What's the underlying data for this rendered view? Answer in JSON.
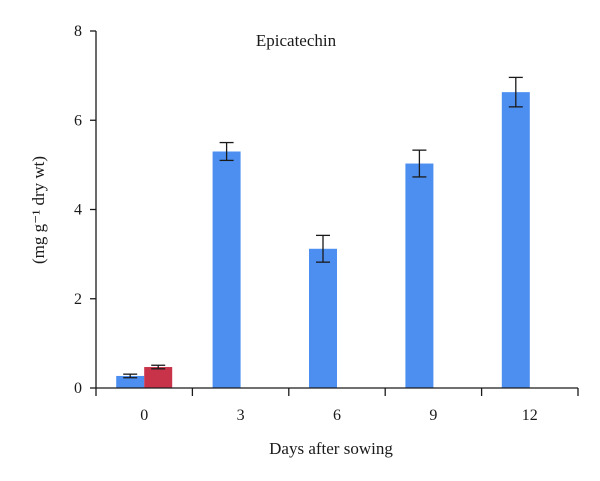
{
  "chart_data": {
    "type": "bar",
    "title": "Epicatechin",
    "xlabel": "Days after sowing",
    "ylabel": "(mg g⁻¹ dry wt)",
    "categories": [
      "0",
      "3",
      "6",
      "9",
      "12"
    ],
    "ylim": [
      0,
      8
    ],
    "yticks": [
      0,
      2,
      4,
      6,
      8
    ],
    "grid": false,
    "legend": "none",
    "series": [
      {
        "color": "#4d8ff0",
        "values": [
          0.27,
          5.3,
          3.12,
          5.03,
          6.63
        ],
        "errors": [
          0.04,
          0.2,
          0.3,
          0.3,
          0.33
        ]
      },
      {
        "color": "#c9334a",
        "values": [
          0.47,
          0,
          0,
          0,
          0
        ],
        "errors": [
          0.04,
          0,
          0,
          0,
          0
        ]
      }
    ]
  }
}
